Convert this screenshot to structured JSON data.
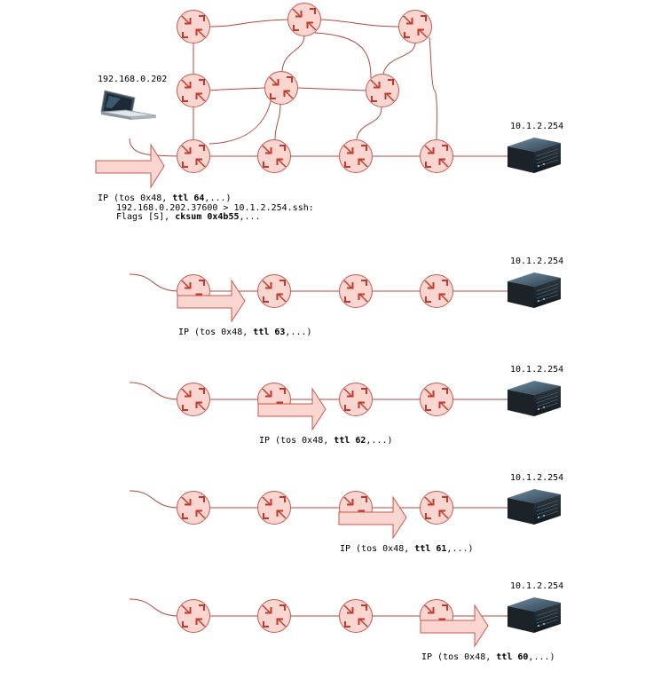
{
  "colors": {
    "wire": "#b5493d",
    "router_fill": "#fbd5cf",
    "router_stroke": "#c65a4e",
    "router_arrows": "#c0392b",
    "packet_fill": "#fbd5cf"
  },
  "icons": {
    "router": "router-icon",
    "laptop": "laptop-icon",
    "server": "server-icon",
    "packet": "packet-arrow-icon"
  },
  "laptop": {
    "label": "192.168.0.202"
  },
  "server": {
    "label": "10.1.2.254"
  },
  "first_packet": {
    "line1_pre": "IP (tos 0x48, ",
    "line1_ttl": "ttl 64",
    "line1_post": ",...)",
    "line2": "192.168.0.202.37600 > 10.1.2.254.ssh:",
    "line3_pre": "Flags [S], ",
    "line3_cksum": "cksum 0x4b55",
    "line3_post": ",..."
  },
  "hops": [
    {
      "pre": "IP (tos 0x48, ",
      "ttl": "ttl 63",
      "post": ",...)"
    },
    {
      "pre": "IP (tos 0x48, ",
      "ttl": "ttl 62",
      "post": ",...)"
    },
    {
      "pre": "IP (tos 0x48, ",
      "ttl": "ttl 61",
      "post": ",...)"
    },
    {
      "pre": "IP (tos 0x48, ",
      "ttl": "ttl 60",
      "post": ",...)"
    }
  ]
}
